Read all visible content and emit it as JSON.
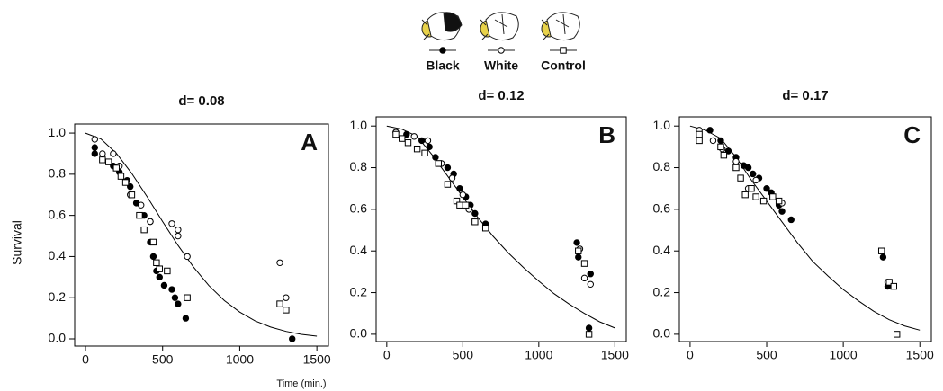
{
  "chart_data": [
    {
      "type": "scatter",
      "title": "d= 0.08",
      "label": "A",
      "ylabel": "Survival",
      "xlabel": "Time (min.)",
      "xlim": [
        -70,
        1575
      ],
      "ylim": [
        -0.035,
        1.044
      ],
      "xticks": [
        0,
        500,
        1000,
        1500
      ],
      "yticks": [
        {
          "value": 0,
          "label": "0.0"
        },
        0.2,
        0.4,
        0.6,
        0.8,
        {
          "value": 1,
          "label": "1.0"
        }
      ],
      "series": [
        {
          "name": "Black",
          "color": "#000000",
          "marker": "circle-filled",
          "x": [
            60,
            60,
            180,
            220,
            270,
            290,
            330,
            380,
            420,
            420,
            440,
            460,
            480,
            510,
            560,
            580,
            600,
            650,
            1340
          ],
          "values": [
            0.93,
            0.9,
            0.84,
            0.81,
            0.77,
            0.74,
            0.66,
            0.6,
            0.57,
            0.47,
            0.4,
            0.33,
            0.3,
            0.26,
            0.24,
            0.2,
            0.17,
            0.1,
            0.0
          ]
        },
        {
          "name": "White",
          "color": "#000000",
          "marker": "circle-open",
          "x": [
            60,
            110,
            180,
            220,
            290,
            360,
            420,
            560,
            600,
            600,
            660,
            1260,
            1300
          ],
          "values": [
            0.97,
            0.9,
            0.9,
            0.84,
            0.7,
            0.65,
            0.57,
            0.56,
            0.53,
            0.5,
            0.4,
            0.37,
            0.2
          ]
        },
        {
          "name": "Control",
          "color": "#000000",
          "marker": "square-open",
          "x": [
            110,
            150,
            200,
            230,
            260,
            300,
            350,
            380,
            440,
            460,
            480,
            530,
            660,
            1260,
            1300
          ],
          "values": [
            0.87,
            0.86,
            0.83,
            0.79,
            0.76,
            0.7,
            0.6,
            0.53,
            0.47,
            0.37,
            0.34,
            0.33,
            0.2,
            0.17,
            0.14
          ]
        }
      ],
      "fit": {
        "type": "line",
        "color": "#000000",
        "x": [
          0,
          100,
          200,
          300,
          400,
          500,
          600,
          700,
          800,
          900,
          1000,
          1100,
          1200,
          1300,
          1400,
          1500
        ],
        "values": [
          1.0,
          0.972,
          0.902,
          0.804,
          0.69,
          0.57,
          0.454,
          0.349,
          0.259,
          0.186,
          0.13,
          0.087,
          0.057,
          0.036,
          0.022,
          0.013
        ]
      }
    },
    {
      "type": "scatter",
      "title": "d= 0.12",
      "label": "B",
      "xlim": [
        -70,
        1575
      ],
      "ylim": [
        -0.035,
        1.044
      ],
      "xticks": [
        0,
        500,
        1000,
        1500
      ],
      "yticks": [
        {
          "value": 0,
          "label": "0.0"
        },
        0.2,
        0.4,
        0.6,
        0.8,
        {
          "value": 1,
          "label": "1.0"
        }
      ],
      "series": [
        {
          "name": "Black",
          "color": "#000000",
          "marker": "circle-filled",
          "x": [
            60,
            130,
            230,
            280,
            320,
            400,
            440,
            480,
            520,
            550,
            580,
            650,
            1250,
            1260,
            1340,
            1330
          ],
          "values": [
            0.97,
            0.96,
            0.93,
            0.9,
            0.85,
            0.8,
            0.77,
            0.7,
            0.66,
            0.62,
            0.58,
            0.53,
            0.44,
            0.37,
            0.29,
            0.03
          ]
        },
        {
          "name": "White",
          "color": "#000000",
          "marker": "circle-open",
          "x": [
            60,
            180,
            270,
            360,
            430,
            500,
            540,
            1270,
            1300,
            1340
          ],
          "values": [
            0.97,
            0.95,
            0.93,
            0.82,
            0.75,
            0.67,
            0.6,
            0.41,
            0.27,
            0.24
          ]
        },
        {
          "name": "Control",
          "color": "#000000",
          "marker": "square-open",
          "x": [
            60,
            100,
            140,
            200,
            250,
            340,
            400,
            460,
            480,
            520,
            580,
            650,
            1260,
            1300,
            1330
          ],
          "values": [
            0.96,
            0.94,
            0.92,
            0.89,
            0.87,
            0.82,
            0.72,
            0.64,
            0.62,
            0.62,
            0.54,
            0.51,
            0.4,
            0.34,
            0.0
          ]
        }
      ],
      "fit": {
        "type": "line",
        "color": "#000000",
        "x": [
          0,
          100,
          200,
          300,
          400,
          500,
          600,
          700,
          800,
          900,
          1000,
          1100,
          1200,
          1300,
          1400,
          1500
        ],
        "values": [
          1.0,
          0.985,
          0.95,
          0.86,
          0.76,
          0.66,
          0.56,
          0.47,
          0.39,
          0.32,
          0.255,
          0.195,
          0.145,
          0.1,
          0.06,
          0.03
        ]
      }
    },
    {
      "type": "scatter",
      "title": "d= 0.17",
      "label": "C",
      "xlim": [
        -70,
        1575
      ],
      "ylim": [
        -0.035,
        1.044
      ],
      "xticks": [
        0,
        500,
        1000,
        1500
      ],
      "yticks": [
        {
          "value": 0,
          "label": "0.0"
        },
        0.2,
        0.4,
        0.6,
        0.8,
        {
          "value": 1,
          "label": "1.0"
        }
      ],
      "series": [
        {
          "name": "Black",
          "color": "#000000",
          "marker": "circle-filled",
          "x": [
            130,
            200,
            250,
            300,
            350,
            380,
            410,
            450,
            500,
            530,
            580,
            600,
            660,
            1260,
            1290
          ],
          "values": [
            0.98,
            0.93,
            0.88,
            0.85,
            0.81,
            0.8,
            0.77,
            0.75,
            0.7,
            0.68,
            0.62,
            0.59,
            0.55,
            0.37,
            0.23
          ]
        },
        {
          "name": "White",
          "color": "#000000",
          "marker": "circle-open",
          "x": [
            60,
            150,
            210,
            300,
            380,
            430,
            540,
            600,
            1290
          ],
          "values": [
            0.98,
            0.93,
            0.89,
            0.83,
            0.7,
            0.74,
            0.66,
            0.63,
            0.25
          ]
        },
        {
          "name": "Control",
          "color": "#000000",
          "marker": "square-open",
          "x": [
            60,
            60,
            200,
            220,
            300,
            330,
            360,
            400,
            430,
            480,
            540,
            580,
            1250,
            1300,
            1330,
            1350
          ],
          "values": [
            0.96,
            0.93,
            0.9,
            0.86,
            0.8,
            0.75,
            0.67,
            0.7,
            0.66,
            0.64,
            0.66,
            0.64,
            0.4,
            0.25,
            0.23,
            0.0
          ]
        }
      ],
      "fit": {
        "type": "line",
        "color": "#000000",
        "x": [
          0,
          100,
          200,
          300,
          400,
          500,
          600,
          700,
          800,
          900,
          1000,
          1100,
          1200,
          1300,
          1400,
          1500
        ],
        "values": [
          1.0,
          0.98,
          0.94,
          0.85,
          0.74,
          0.64,
          0.54,
          0.44,
          0.35,
          0.28,
          0.215,
          0.16,
          0.11,
          0.07,
          0.04,
          0.02
        ]
      }
    }
  ]
}
